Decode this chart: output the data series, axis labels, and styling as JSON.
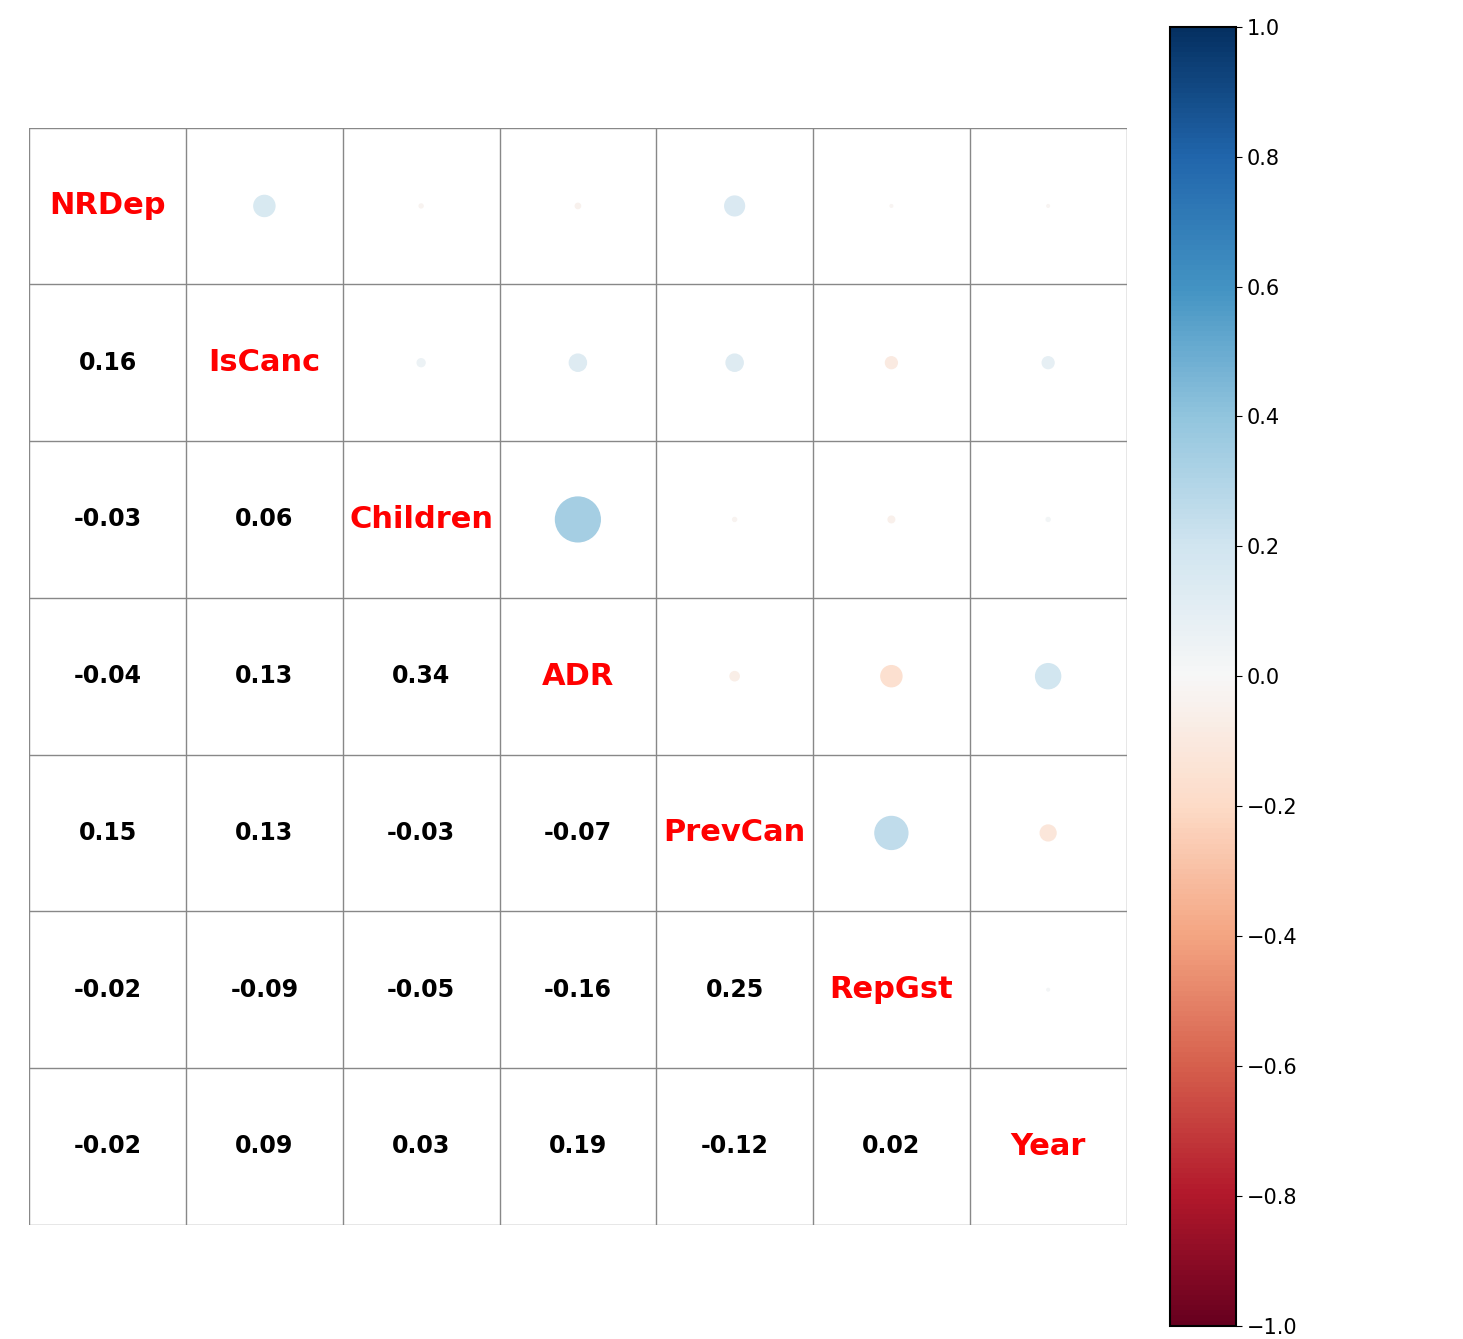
{
  "variables": [
    "NRDep",
    "IsCanc",
    "Children",
    "ADR",
    "PrevCan",
    "RepGst",
    "Year"
  ],
  "corr_matrix": [
    [
      1.0,
      0.16,
      -0.03,
      -0.04,
      0.15,
      -0.02,
      -0.02
    ],
    [
      0.16,
      1.0,
      0.06,
      0.13,
      0.13,
      -0.09,
      0.09
    ],
    [
      -0.03,
      0.06,
      1.0,
      0.34,
      -0.03,
      -0.05,
      0.03
    ],
    [
      -0.04,
      0.13,
      0.34,
      1.0,
      -0.07,
      -0.16,
      0.19
    ],
    [
      0.15,
      0.13,
      -0.03,
      -0.07,
      1.0,
      0.25,
      -0.12
    ],
    [
      -0.02,
      -0.09,
      -0.05,
      -0.16,
      0.25,
      1.0,
      0.02
    ],
    [
      -0.02,
      0.09,
      0.03,
      0.19,
      -0.12,
      0.02,
      1.0
    ]
  ],
  "label_color": "#FF0000",
  "number_color": "#000000",
  "background_color": "#FFFFFF",
  "grid_color": "#888888",
  "label_fontsize": 22,
  "number_fontsize": 17,
  "figsize": [
    14.63,
    13.39
  ]
}
